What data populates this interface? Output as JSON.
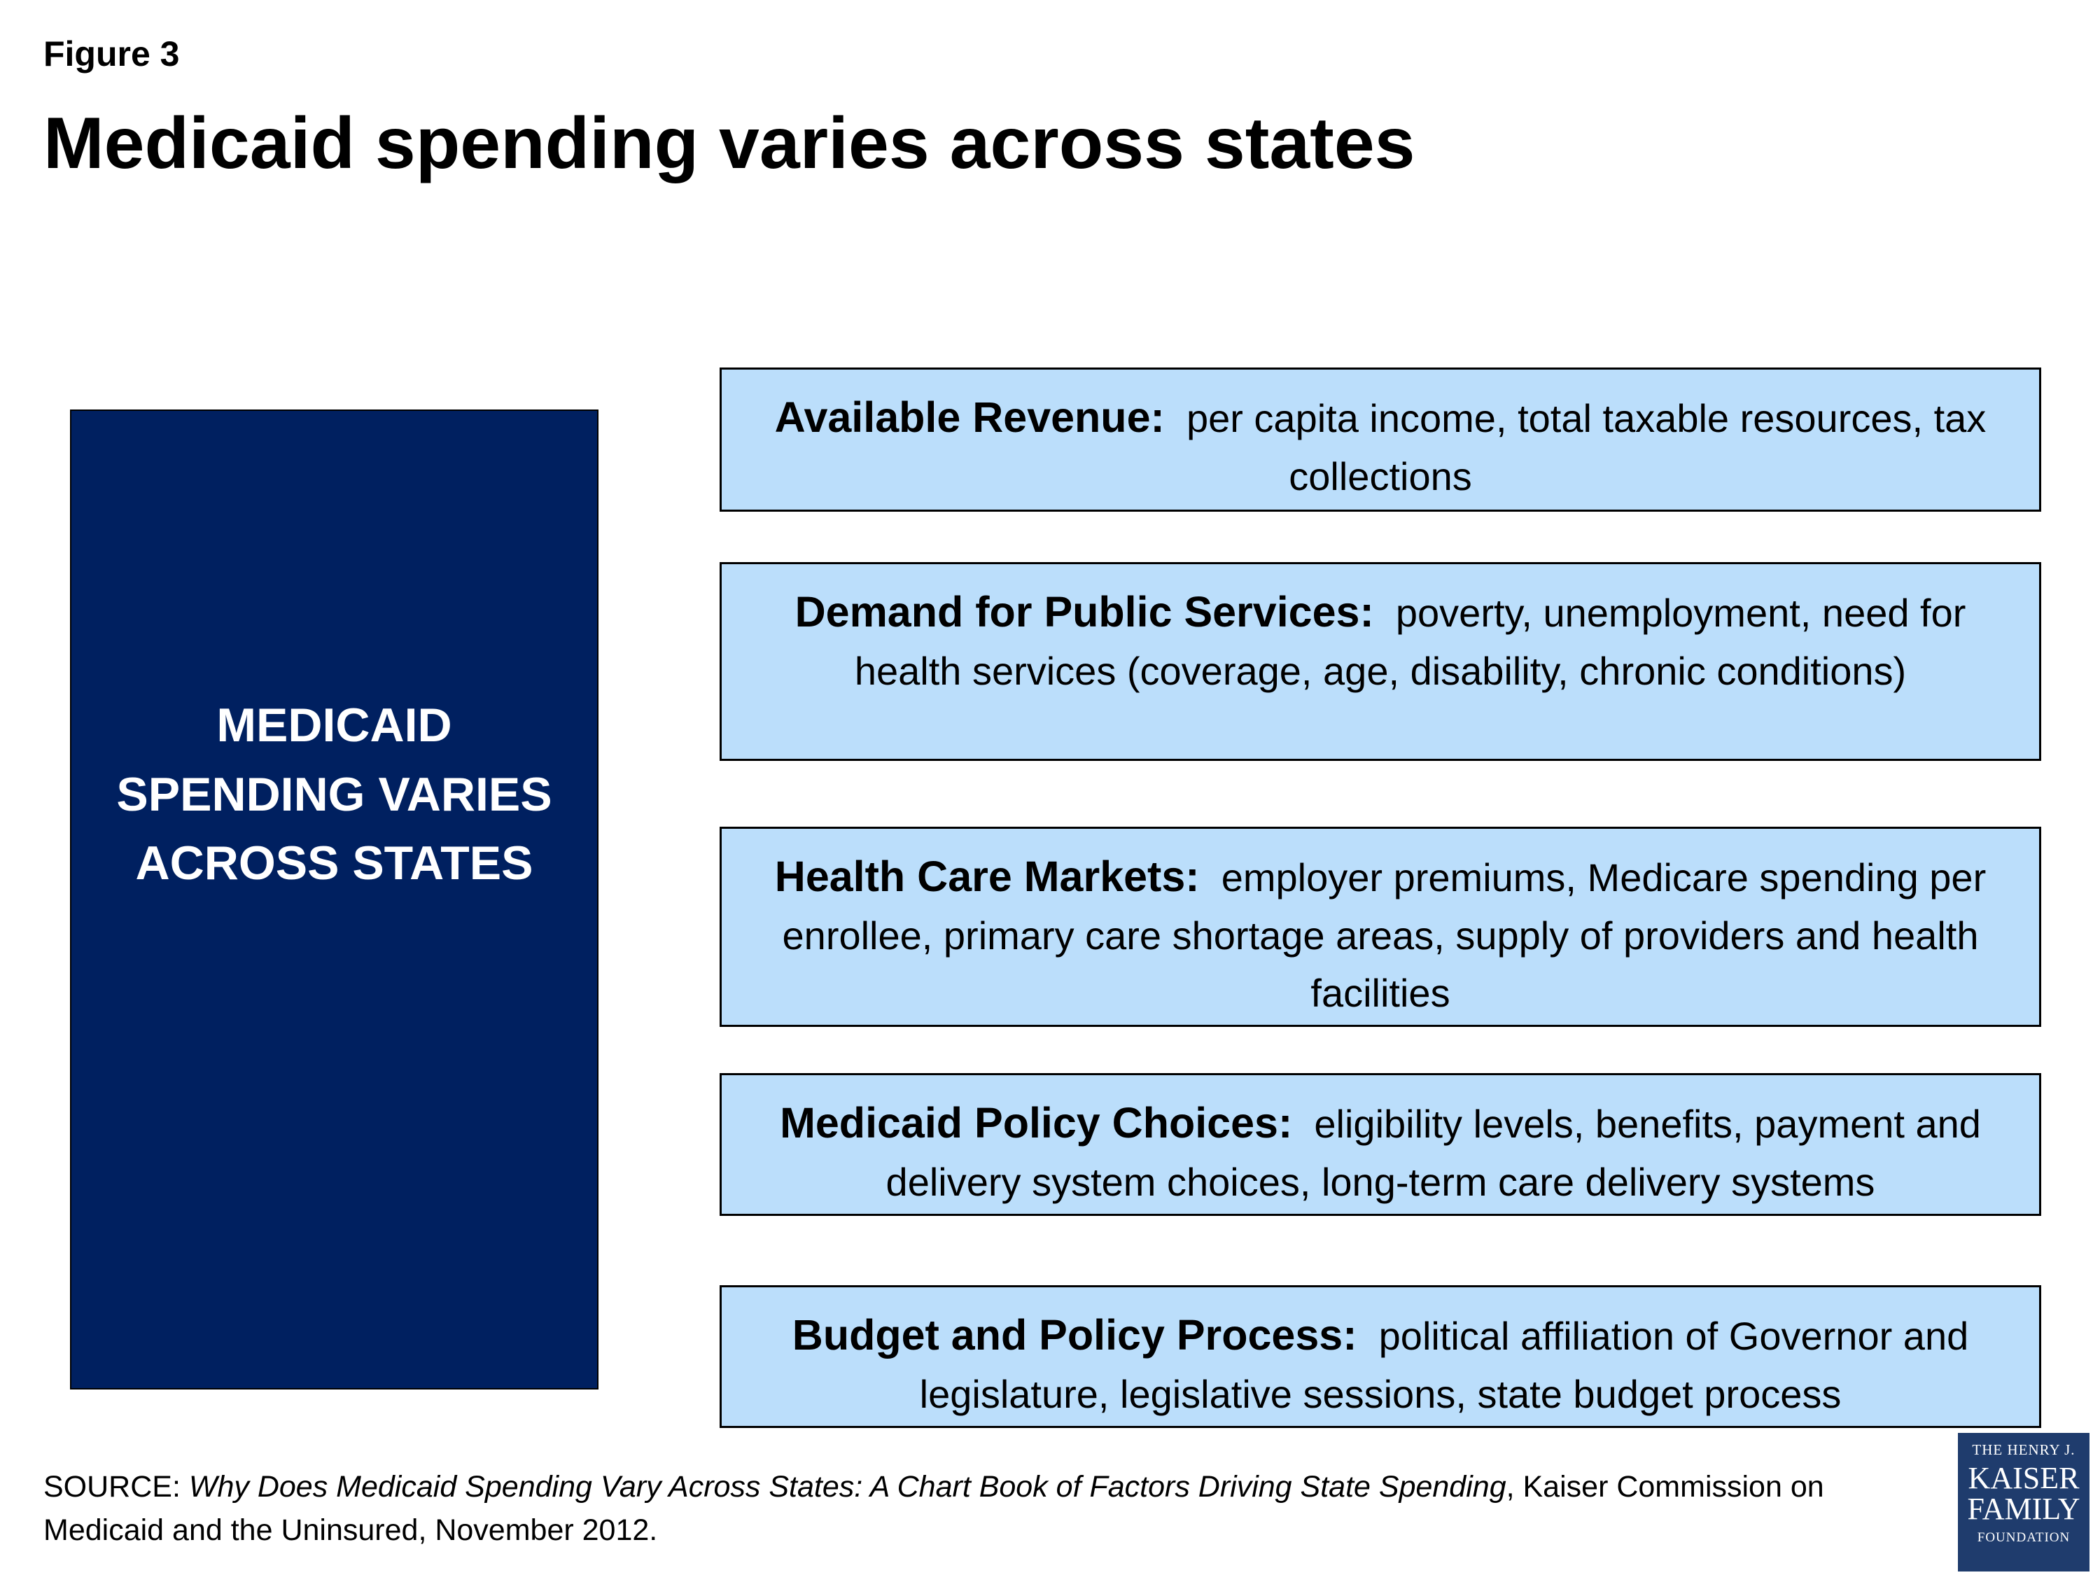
{
  "figure_label": "Figure 3",
  "title": "Medicaid spending varies across states",
  "center": {
    "lines": [
      "MEDICAID",
      "SPENDING VARIES",
      "ACROSS STATES"
    ],
    "color": "#002060"
  },
  "factors": [
    {
      "title": "Available Revenue:",
      "text": "per capita income, total taxable resources, tax collections"
    },
    {
      "title": "Demand for Public Services:",
      "text": "poverty, unemployment, need for health services (coverage, age, disability, chronic conditions)"
    },
    {
      "title": "Health Care Markets:",
      "text": "employer premiums, Medicare spending per enrollee, primary care shortage areas, supply of providers and health facilities"
    },
    {
      "title": "Medicaid Policy Choices:",
      "text": "eligibility levels, benefits, payment and delivery system choices, long-term care delivery systems"
    },
    {
      "title": "Budget and Policy Process:",
      "text": "political affiliation of Governor and legislature, legislative sessions, state budget process"
    }
  ],
  "factor_box_color": "#bbdefb",
  "source": {
    "prefix": "SOURCE: ",
    "italic": "Why Does Medicaid Spending Vary Across States:  A Chart Book of Factors Driving State Spending",
    "suffix": ", Kaiser Commission on Medicaid and the Uninsured, November 2012."
  },
  "logo": {
    "line1": "THE HENRY J.",
    "line2": "KAISER",
    "line3": "FAMILY",
    "line4": "FOUNDATION"
  }
}
